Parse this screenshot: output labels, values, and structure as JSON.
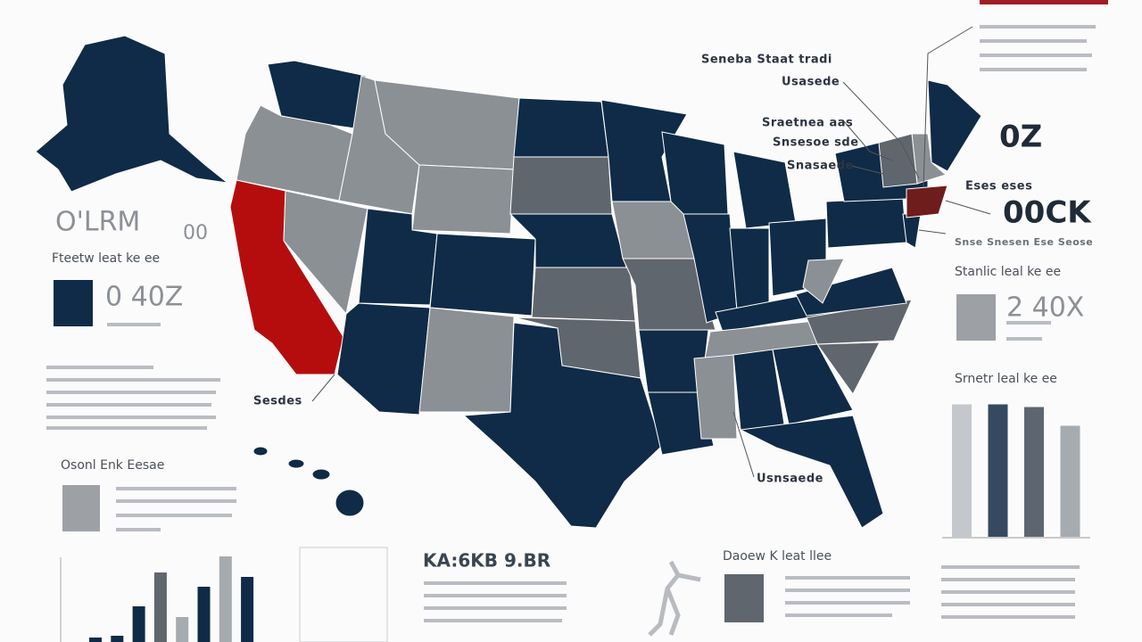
{
  "texts": {
    "callout_1": "Seneba Staat tradi",
    "callout_2": "Usasede",
    "callout_3": "Sraetnea aas",
    "callout_4": "Snsesoe sde",
    "callout_5": "Snasaede",
    "callout_6": "Eses eses",
    "callout_7": "Sesdes",
    "callout_8": "Usnsaede",
    "big_right_1": "0Z",
    "big_right_2": "00CK",
    "right_sub": "Snse Snesen Ese Seose",
    "left_big": "O'LRM",
    "left_big_2": "00",
    "panel_left_title": "Fteetw leat ke ee",
    "panel_left_value": "0  40Z",
    "panel_right_title": "Stanlic leal ke ee",
    "panel_right_value": "2  40X",
    "right_chart_title": "Srnetr leal ke ee",
    "left_mid_title": "Osonl Enk Eesae",
    "bottom_center_title": "KA:6KB 9.BR",
    "bottom_right_title": "Daoew K leat llee"
  },
  "charts": {
    "right_bars": {
      "type": "bar",
      "values": [
        99,
        99,
        97,
        83
      ],
      "colors": [
        "#c4c8cc",
        "#354a60",
        "#5d6670",
        "#a6abb0"
      ]
    },
    "bottom_bars": {
      "type": "bar",
      "values": [
        5,
        7,
        40,
        78,
        28,
        62,
        96,
        73
      ],
      "colors": [
        "#0f2b47",
        "#0f2b47",
        "#0f2b47",
        "#60666d",
        "#a6abb0",
        "#0f2b47",
        "#a6abb0",
        "#0f2b47"
      ]
    }
  }
}
